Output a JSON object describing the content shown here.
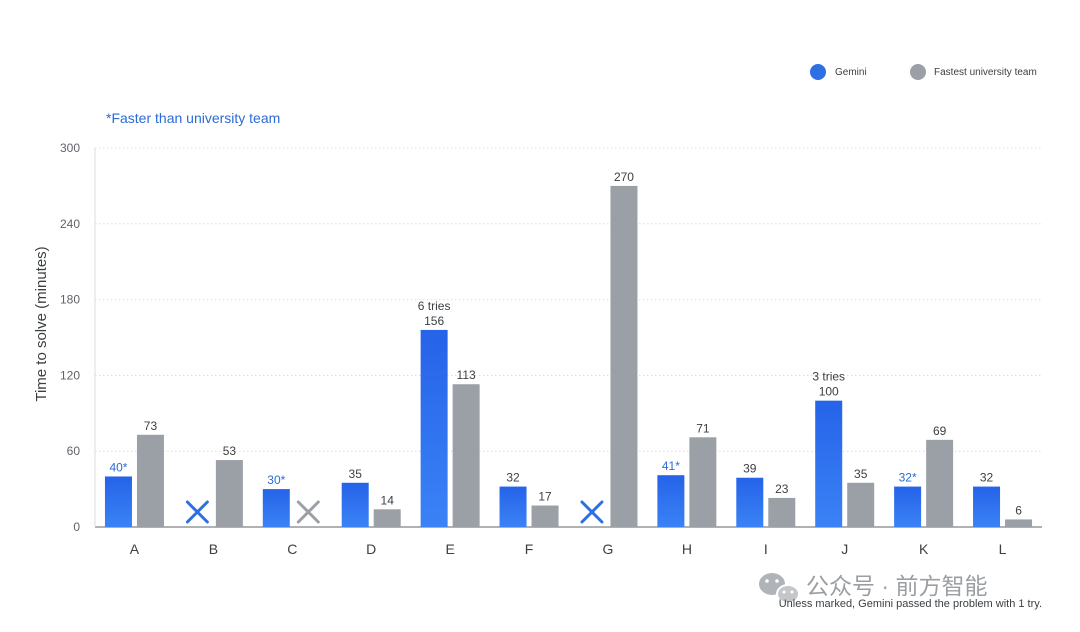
{
  "chart_data": {
    "type": "bar",
    "ylabel": "Time to solve (minutes)",
    "ylim": [
      0,
      300
    ],
    "yticks": [
      0,
      60,
      120,
      180,
      240,
      300
    ],
    "grid": true,
    "legend_position": "top-right",
    "categories": [
      "A",
      "B",
      "C",
      "D",
      "E",
      "F",
      "G",
      "H",
      "I",
      "J",
      "K",
      "L"
    ],
    "series": [
      {
        "name": "Gemini",
        "color": "#2f6fe4",
        "values": [
          40,
          null,
          30,
          35,
          156,
          32,
          null,
          41,
          39,
          100,
          32,
          32
        ],
        "labels": [
          "40*",
          "",
          "30*",
          "35",
          "156",
          "32",
          "",
          "41*",
          "39",
          "100",
          "32*",
          "32"
        ],
        "faster": [
          true,
          false,
          true,
          false,
          false,
          false,
          false,
          true,
          false,
          false,
          true,
          false
        ]
      },
      {
        "name": "Fastest university team",
        "color": "#9aa0a6",
        "values": [
          73,
          53,
          null,
          14,
          113,
          17,
          270,
          71,
          23,
          35,
          69,
          6
        ],
        "labels": [
          "73",
          "53",
          "",
          "14",
          "113",
          "17",
          "270",
          "71",
          "23",
          "35",
          "69",
          "6"
        ]
      }
    ],
    "unsolved": [
      {
        "category": "B",
        "series": "Gemini"
      },
      {
        "category": "C",
        "series": "Fastest university team"
      },
      {
        "category": "G",
        "series": "Gemini"
      }
    ],
    "annotations": [
      {
        "category": "E",
        "text": "6 tries"
      },
      {
        "category": "J",
        "text": "3 tries"
      }
    ],
    "note_faster": "*Faster than university team",
    "footnote": "Unless marked, Gemini passed the problem with 1 try.",
    "watermark": "公众号 · 前方智能",
    "colors": {
      "faster_label": "#2b6bd6",
      "value_label": "#3c4043",
      "grid": "#dadce0",
      "x_blue": "#2f6fe4",
      "x_gray": "#9aa0a6"
    }
  }
}
